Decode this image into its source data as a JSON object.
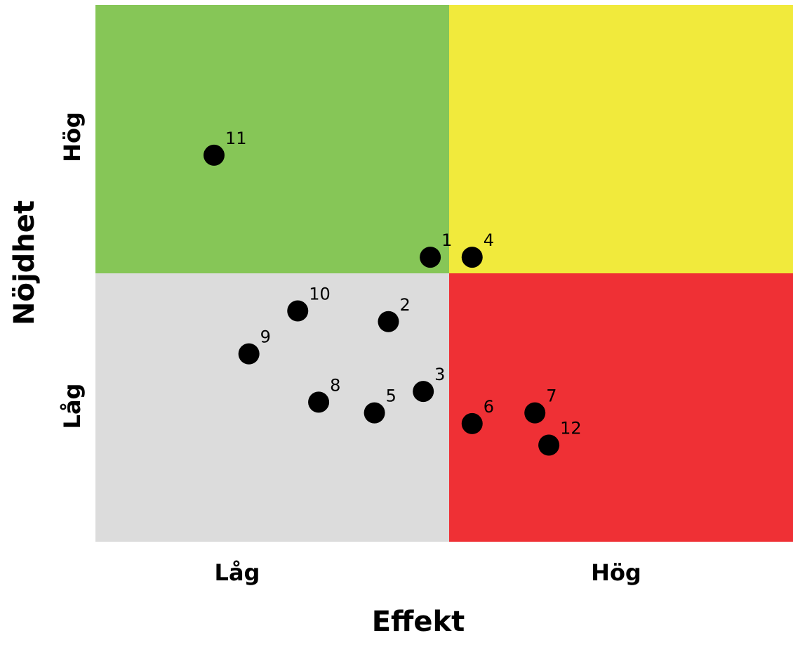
{
  "chart_data": {
    "type": "scatter",
    "title": "",
    "xlabel": "Effekt",
    "ylabel": "Nöjdhet",
    "x_tick_labels": [
      "Låg",
      "Hög"
    ],
    "y_tick_labels": [
      "Hög",
      "Låg"
    ],
    "xlim": [
      0,
      10
    ],
    "ylim": [
      0,
      10
    ],
    "quadrants": [
      {
        "position": "top-left",
        "color": "#86c657"
      },
      {
        "position": "top-right",
        "color": "#f1ea3c"
      },
      {
        "position": "bottom-left",
        "color": "#dcdcdc"
      },
      {
        "position": "bottom-right",
        "color": "#ef3035"
      }
    ],
    "points": [
      {
        "label": "1",
        "x": 4.8,
        "y": 5.3
      },
      {
        "label": "2",
        "x": 4.2,
        "y": 4.1
      },
      {
        "label": "3",
        "x": 4.7,
        "y": 2.8
      },
      {
        "label": "4",
        "x": 5.4,
        "y": 5.3
      },
      {
        "label": "5",
        "x": 4.0,
        "y": 2.4
      },
      {
        "label": "6",
        "x": 5.4,
        "y": 2.2
      },
      {
        "label": "7",
        "x": 6.3,
        "y": 2.4
      },
      {
        "label": "8",
        "x": 3.2,
        "y": 2.6
      },
      {
        "label": "9",
        "x": 2.2,
        "y": 3.5
      },
      {
        "label": "10",
        "x": 2.9,
        "y": 4.3
      },
      {
        "label": "11",
        "x": 1.7,
        "y": 7.2
      },
      {
        "label": "12",
        "x": 6.5,
        "y": 1.8
      }
    ]
  }
}
